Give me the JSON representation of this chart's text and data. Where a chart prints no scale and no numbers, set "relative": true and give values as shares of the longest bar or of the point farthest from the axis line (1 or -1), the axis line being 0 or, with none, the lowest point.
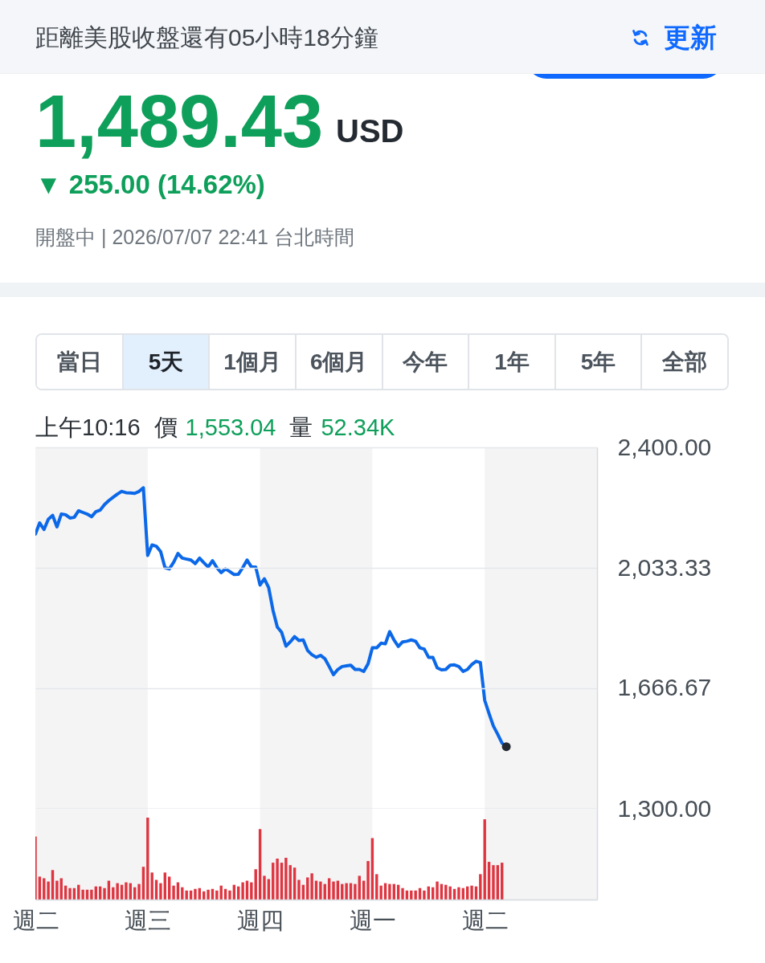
{
  "chart_data": [
    {
      "type": "other",
      "annotations": [
        "距離美股收盤還有05小時18分鐘",
        "更新",
        "1,489.43",
        "USD",
        "▼ 255.00 (14.62%)",
        "開盤中 | 2026/07/07 22:41 台北時間",
        "當日",
        "5天",
        "1個月",
        "6個月",
        "今年",
        "1年",
        "5年",
        "全部",
        "上午10:16",
        "價",
        "1,553.04",
        "量",
        "52.34K"
      ]
    },
    {
      "type": "line",
      "categories": [
        "週二",
        null,
        null,
        null,
        null,
        null,
        null,
        null,
        null,
        null,
        null,
        null,
        null,
        null,
        null,
        null,
        null,
        null,
        null,
        null,
        null,
        null,
        null,
        null,
        null,
        null,
        "週三",
        null,
        null,
        null,
        null,
        null,
        null,
        null,
        null,
        null,
        null,
        null,
        null,
        null,
        null,
        null,
        null,
        null,
        null,
        null,
        null,
        null,
        null,
        null,
        null,
        null,
        "週四",
        null,
        null,
        null,
        null,
        null,
        null,
        null,
        null,
        null,
        null,
        null,
        null,
        null,
        null,
        null,
        null,
        null,
        null,
        null,
        null,
        null,
        null,
        null,
        null,
        null,
        "週一",
        null,
        null,
        null,
        null,
        null,
        null,
        null,
        null,
        null,
        null,
        null,
        null,
        null,
        null,
        null,
        null,
        null,
        null,
        null,
        null,
        null,
        null,
        null,
        null,
        null,
        "週二",
        null,
        null,
        null,
        null,
        null,
        null,
        null,
        null,
        null,
        null,
        null,
        null,
        null,
        null,
        null,
        null,
        null,
        null,
        null,
        null,
        null,
        null,
        null,
        null,
        null
      ],
      "series": [
        {
          "type": "line",
          "color": "#0b68e8",
          "values": [
            2136,
            2170,
            2150,
            2181,
            2193,
            2158,
            2197,
            2195,
            2185,
            2187,
            2207,
            2202,
            2197,
            2189,
            2204,
            2209,
            2226,
            2238,
            2248,
            2258,
            2266,
            2262,
            2261,
            2260,
            2266,
            2277,
            2071,
            2103,
            2099,
            2083,
            2034,
            2030,
            2050,
            2077,
            2063,
            2060,
            2057,
            2046,
            2063,
            2049,
            2036,
            2055,
            2034,
            2019,
            2030,
            2022,
            2013,
            2014,
            2034,
            2057,
            2036,
            2036,
            1981,
            2000,
            1973,
            1904,
            1853,
            1837,
            1795,
            1808,
            1824,
            1812,
            1814,
            1782,
            1769,
            1761,
            1767,
            1757,
            1733,
            1708,
            1724,
            1733,
            1735,
            1737,
            1724,
            1724,
            1718,
            1741,
            1790,
            1790,
            1804,
            1802,
            1839,
            1814,
            1794,
            1808,
            1810,
            1814,
            1810,
            1790,
            1786,
            1761,
            1761,
            1729,
            1723,
            1724,
            1737,
            1738,
            1733,
            1718,
            1724,
            1739,
            1749,
            1745,
            1630,
            1590,
            1552,
            1527,
            1500,
            1489,
            null,
            null,
            null,
            null,
            null,
            null,
            null,
            null,
            null,
            null,
            null,
            null,
            null,
            null,
            null,
            null,
            null,
            null,
            null,
            null
          ]
        },
        {
          "type": "scatter",
          "color": "#232a31",
          "values": [
            null,
            null,
            null,
            null,
            null,
            null,
            null,
            null,
            null,
            null,
            null,
            null,
            null,
            null,
            null,
            null,
            null,
            null,
            null,
            null,
            null,
            null,
            null,
            null,
            null,
            null,
            null,
            null,
            null,
            null,
            null,
            null,
            null,
            null,
            null,
            null,
            null,
            null,
            null,
            null,
            null,
            null,
            null,
            null,
            null,
            null,
            null,
            null,
            null,
            null,
            null,
            null,
            null,
            null,
            null,
            null,
            null,
            null,
            null,
            null,
            null,
            null,
            null,
            null,
            null,
            null,
            null,
            null,
            null,
            null,
            null,
            null,
            null,
            null,
            null,
            null,
            null,
            null,
            null,
            null,
            null,
            null,
            null,
            null,
            null,
            null,
            null,
            null,
            null,
            null,
            null,
            null,
            null,
            null,
            null,
            null,
            null,
            null,
            null,
            null,
            null,
            null,
            null,
            null,
            null,
            null,
            null,
            null,
            null,
            1489,
            null,
            null,
            null,
            null,
            null,
            null,
            null,
            null,
            null,
            null,
            null,
            null,
            null,
            null,
            null,
            null,
            null,
            null,
            null,
            null
          ]
        }
      ],
      "ylim": [
        1300,
        2400
      ],
      "yticks": [
        {
          "value": 1300,
          "label": "1,300.00"
        },
        {
          "value": 1666.67,
          "label": "1,666.67"
        },
        {
          "value": 2033.33,
          "label": "2,033.33"
        },
        {
          "value": 2400,
          "label": "2,400.00"
        }
      ],
      "grid": "y",
      "tick_labels": "y",
      "bands": [
        {
          "axis": "x",
          "from": "週三",
          "to": "週四",
          "color": "#ffffff"
        }
      ]
    },
    {
      "type": "bar",
      "relative": true,
      "color": "#de3540",
      "categories": [
        "週二",
        null,
        null,
        null,
        null,
        null,
        null,
        null,
        null,
        null,
        null,
        null,
        null,
        null,
        null,
        null,
        null,
        null,
        null,
        null,
        null,
        null,
        null,
        null,
        null,
        null,
        "週三",
        null,
        null,
        null,
        null,
        null,
        null,
        null,
        null,
        null,
        null,
        null,
        null,
        null,
        null,
        null,
        null,
        null,
        null,
        null,
        null,
        null,
        null,
        null,
        null,
        null,
        "週四",
        null,
        null,
        null,
        null,
        null,
        null,
        null,
        null,
        null,
        null,
        null,
        null,
        null,
        null,
        null,
        null,
        null,
        null,
        null,
        null,
        null,
        null,
        null,
        null,
        null,
        "週一",
        null,
        null,
        null,
        null,
        null,
        null,
        null,
        null,
        null,
        null,
        null,
        null,
        null,
        null,
        null,
        null,
        null,
        null,
        null,
        null,
        null,
        null,
        null,
        null,
        null,
        "週二",
        null,
        null,
        null,
        null,
        null,
        null,
        null,
        null,
        null,
        null,
        null,
        null,
        null,
        null,
        null,
        null,
        null,
        null,
        null,
        null,
        null,
        null,
        null,
        null,
        null
      ],
      "values": [
        0.77,
        0.28,
        0.26,
        0.22,
        0.36,
        0.23,
        0.26,
        0.17,
        0.14,
        0.14,
        0.18,
        0.12,
        0.12,
        0.12,
        0.16,
        0.16,
        0.14,
        0.23,
        0.15,
        0.2,
        0.18,
        0.21,
        0.2,
        0.15,
        0.19,
        0.4,
        1,
        0.33,
        0.24,
        0.2,
        0.33,
        0.28,
        0.17,
        0.21,
        0.15,
        0.11,
        0.11,
        0.13,
        0.14,
        0.1,
        0.12,
        0.13,
        0.11,
        0.17,
        0.13,
        0.11,
        0.18,
        0.16,
        0.21,
        0.23,
        0.21,
        0.37,
        0.86,
        0.29,
        0.25,
        0.45,
        0.5,
        0.45,
        0.51,
        0.42,
        0.39,
        0.24,
        0.18,
        0.27,
        0.32,
        0.23,
        0.22,
        0.19,
        0.26,
        0.22,
        0.23,
        0.19,
        0.2,
        0.2,
        0.19,
        0.29,
        0.23,
        0.47,
        0.75,
        0.31,
        0.17,
        0.2,
        0.19,
        0.19,
        0.18,
        0.14,
        0.11,
        0.11,
        0.11,
        0.14,
        0.11,
        0.16,
        0.15,
        0.22,
        0.19,
        0.18,
        0.16,
        0.13,
        0.15,
        0.14,
        0.16,
        0.17,
        0.16,
        0.31,
        0.98,
        0.46,
        0.42,
        0.42,
        0.45,
        null,
        null,
        null,
        null,
        null,
        null,
        null,
        null,
        null,
        null,
        null,
        null,
        null,
        null,
        null,
        null,
        null,
        null,
        null,
        null,
        null
      ],
      "tick_labels": "x",
      "bands": [
        {
          "axis": "x",
          "from": "週三",
          "to": "週四",
          "color": "#ffffff"
        }
      ]
    }
  ]
}
